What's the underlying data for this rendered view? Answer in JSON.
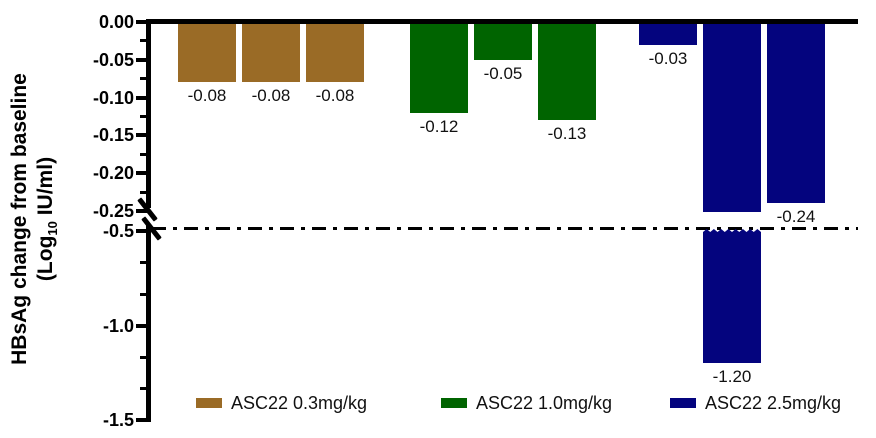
{
  "chart_data": {
    "type": "bar",
    "title": "",
    "ylabel": {
      "line1": "HBsAg change from baseline",
      "line2_prefix": "(Log",
      "line2_sub": "10",
      "line2_suffix": " IU/ml)"
    },
    "groups": [
      {
        "name": "ASC22 0.3mg/kg",
        "color": "#9A6B26",
        "values": [
          -0.08,
          -0.08,
          -0.08
        ],
        "labels": [
          "-0.08",
          "-0.08",
          "-0.08"
        ]
      },
      {
        "name": "ASC22 1.0mg/kg",
        "color": "#006400",
        "values": [
          -0.12,
          -0.05,
          -0.13
        ],
        "labels": [
          "-0.12",
          "-0.05",
          "-0.13"
        ]
      },
      {
        "name": "ASC22 2.5mg/kg",
        "color": "#04047E",
        "values": [
          -0.03,
          -1.2,
          -0.24
        ],
        "labels": [
          "-0.03",
          "-1.20",
          "-0.24"
        ]
      }
    ],
    "axis": {
      "upper_tick_labels": [
        "0.00",
        "-0.05",
        "-0.10",
        "-0.15",
        "-0.20",
        "-0.25"
      ],
      "upper_tick_values": [
        0,
        -0.05,
        -0.1,
        -0.15,
        -0.2,
        -0.25
      ],
      "lower_tick_labels": [
        "-0.5",
        "-1.0",
        "-1.5"
      ],
      "lower_tick_values": [
        -0.5,
        -1.0,
        -1.5
      ],
      "axis_break_between": [
        -0.25,
        -0.5
      ],
      "reference_line_value": -0.5,
      "reference_line_style": "dash-dot",
      "upper_range": [
        0,
        -0.25
      ],
      "lower_range": [
        -0.5,
        -1.5
      ],
      "grid": "off"
    },
    "legend_position": "bottom"
  }
}
